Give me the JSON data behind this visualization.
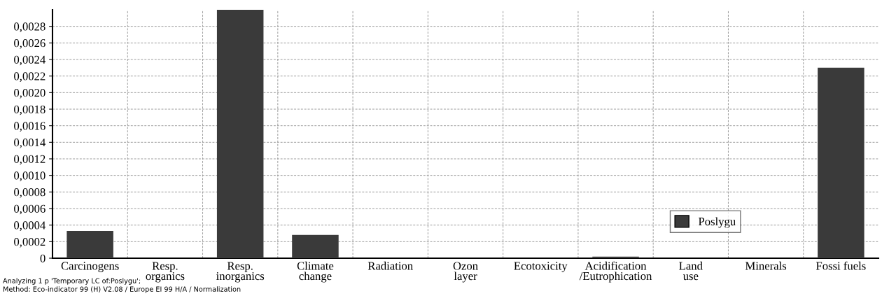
{
  "chart_data": {
    "type": "bar",
    "categories": [
      "Carcinogens",
      "Resp.\norganics",
      "Resp.\ninorganics",
      "Climate\nchange",
      "Radiation",
      "Ozon\nlayer",
      "Ecotoxicity",
      "Acidification\n/Eutrophication",
      "Land\nuse",
      "Minerals",
      "Fossi fuels"
    ],
    "series": [
      {
        "name": "Poslygu",
        "color": "#3a3a3a",
        "values": [
          0.00033,
          0,
          0.003,
          0.00028,
          0,
          0,
          0,
          2e-05,
          0,
          0,
          0.0023
        ]
      }
    ],
    "ylim": [
      0,
      0.003
    ],
    "yticks": [
      0,
      {
        "value": 0.0002,
        "label": "0,0002"
      },
      {
        "value": 0.0004,
        "label": "0,0004"
      },
      {
        "value": 0.0006,
        "label": "0,0006"
      },
      {
        "value": 0.0008,
        "label": "0,0008"
      },
      {
        "value": 0.001,
        "label": "0,0010"
      },
      {
        "value": 0.0012,
        "label": "0,0012"
      },
      {
        "value": 0.0014,
        "label": "0,0014"
      },
      {
        "value": 0.0016,
        "label": "0,0016"
      },
      {
        "value": 0.0018,
        "label": "0,0018"
      },
      {
        "value": 0.002,
        "label": "0,0020"
      },
      {
        "value": 0.0022,
        "label": "0,0022"
      },
      {
        "value": 0.0024,
        "label": "0,0024"
      },
      {
        "value": 0.0026,
        "label": "0,0026"
      },
      {
        "value": 0.0028,
        "label": "0,0028"
      }
    ],
    "grid": true,
    "legend": "bottom right",
    "annotations": [
      "Analyzing 1 p 'Temporary LC of:Poslygu';",
      "Method: Eco-indicator 99 (H) V2.08 / Europe EI 99 H/A / Normalization"
    ]
  }
}
